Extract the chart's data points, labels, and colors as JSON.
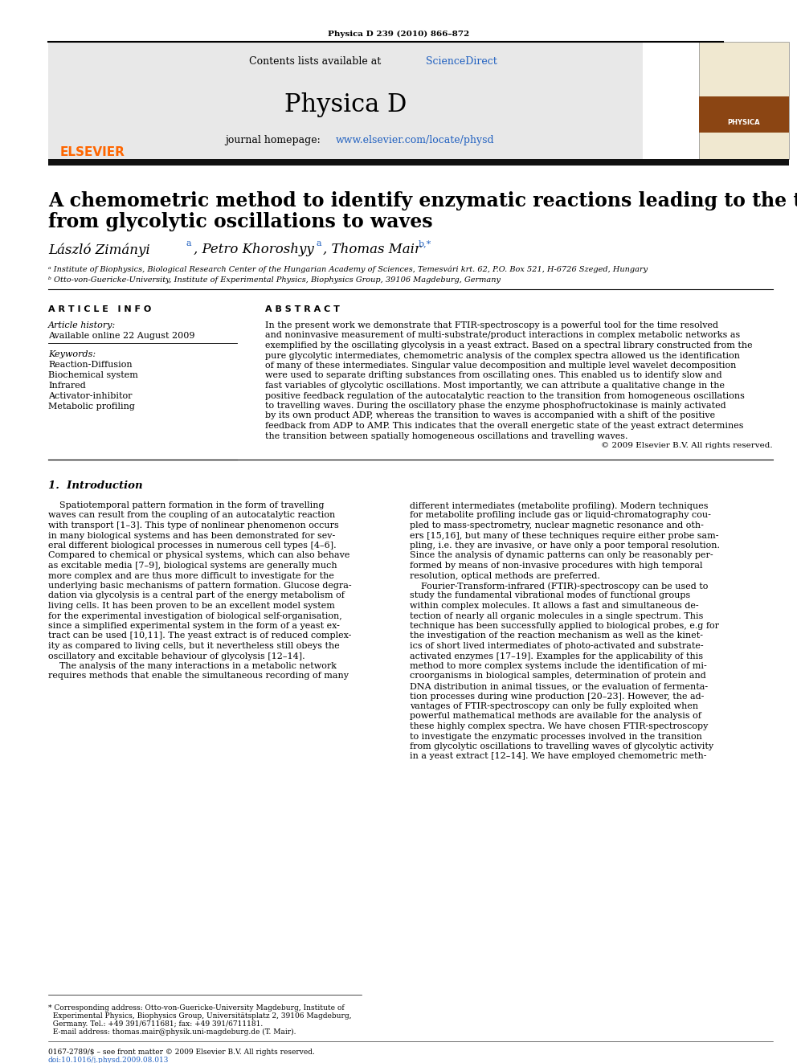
{
  "journal_info": "Physica D 239 (2010) 866–872",
  "header_text1": "Contents lists available at ScienceDirect",
  "header_journal": "Physica D",
  "header_url": "journal homepage: www.elsevier.com/locate/physd",
  "title_line1": "A chemometric method to identify enzymatic reactions leading to the transition",
  "title_line2": "from glycolytic oscillations to waves",
  "authors_part1": "László Zimányi",
  "authors_part2": ", Petro Khoroshyy",
  "authors_part3": ", Thomas Mair",
  "affil_a": "ᵃ Institute of Biophysics, Biological Research Center of the Hungarian Academy of Sciences, Temesvári krt. 62, P.O. Box 521, H-6726 Szeged, Hungary",
  "affil_b": "ᵇ Otto-von-Guericke-University, Institute of Experimental Physics, Biophysics Group, 39106 Magdeburg, Germany",
  "article_info_header": "A R T I C L E   I N F O",
  "abstract_header": "A B S T R A C T",
  "article_history_label": "Article history:",
  "article_history_value": "Available online 22 August 2009",
  "keywords_label": "Keywords:",
  "keywords": [
    "Reaction-Diffusion",
    "Biochemical system",
    "Infrared",
    "Activator-inhibitor",
    "Metabolic profiling"
  ],
  "abstract_lines": [
    "In the present work we demonstrate that FTIR-spectroscopy is a powerful tool for the time resolved",
    "and noninvasive measurement of multi-substrate/product interactions in complex metabolic networks as",
    "exemplified by the oscillating glycolysis in a yeast extract. Based on a spectral library constructed from the",
    "pure glycolytic intermediates, chemometric analysis of the complex spectra allowed us the identification",
    "of many of these intermediates. Singular value decomposition and multiple level wavelet decomposition",
    "were used to separate drifting substances from oscillating ones. This enabled us to identify slow and",
    "fast variables of glycolytic oscillations. Most importantly, we can attribute a qualitative change in the",
    "positive feedback regulation of the autocatalytic reaction to the transition from homogeneous oscillations",
    "to travelling waves. During the oscillatory phase the enzyme phosphofructokinase is mainly activated",
    "by its own product ADP, whereas the transition to waves is accompanied with a shift of the positive",
    "feedback from ADP to AMP. This indicates that the overall energetic state of the yeast extract determines",
    "the transition between spatially homogeneous oscillations and travelling waves."
  ],
  "copyright": "© 2009 Elsevier B.V. All rights reserved.",
  "section1_header": "1.  Introduction",
  "intro_col1_lines": [
    "    Spatiotemporal pattern formation in the form of travelling",
    "waves can result from the coupling of an autocatalytic reaction",
    "with transport [1–3]. This type of nonlinear phenomenon occurs",
    "in many biological systems and has been demonstrated for sev-",
    "eral different biological processes in numerous cell types [4–6].",
    "Compared to chemical or physical systems, which can also behave",
    "as excitable media [7–9], biological systems are generally much",
    "more complex and are thus more difficult to investigate for the",
    "underlying basic mechanisms of pattern formation. Glucose degra-",
    "dation via glycolysis is a central part of the energy metabolism of",
    "living cells. It has been proven to be an excellent model system",
    "for the experimental investigation of biological self-organisation,",
    "since a simplified experimental system in the form of a yeast ex-",
    "tract can be used [10,11]. The yeast extract is of reduced complex-",
    "ity as compared to living cells, but it nevertheless still obeys the",
    "oscillatory and excitable behaviour of glycolysis [12–14].",
    "    The analysis of the many interactions in a metabolic network",
    "requires methods that enable the simultaneous recording of many"
  ],
  "intro_col2_lines": [
    "different intermediates (metabolite profiling). Modern techniques",
    "for metabolite profiling include gas or liquid-chromatography cou-",
    "pled to mass-spectrometry, nuclear magnetic resonance and oth-",
    "ers [15,16], but many of these techniques require either probe sam-",
    "pling, i.e. they are invasive, or have only a poor temporal resolution.",
    "Since the analysis of dynamic patterns can only be reasonably per-",
    "formed by means of non-invasive procedures with high temporal",
    "resolution, optical methods are preferred.",
    "    Fourier-Transform-infrared (FTIR)-spectroscopy can be used to",
    "study the fundamental vibrational modes of functional groups",
    "within complex molecules. It allows a fast and simultaneous de-",
    "tection of nearly all organic molecules in a single spectrum. This",
    "technique has been successfully applied to biological probes, e.g for",
    "the investigation of the reaction mechanism as well as the kinet-",
    "ics of short lived intermediates of photo-activated and substrate-",
    "activated enzymes [17–19]. Examples for the applicability of this",
    "method to more complex systems include the identification of mi-",
    "croorganisms in biological samples, determination of protein and",
    "DNA distribution in animal tissues, or the evaluation of fermenta-",
    "tion processes during wine production [20–23]. However, the ad-",
    "vantages of FTIR-spectroscopy can only be fully exploited when",
    "powerful mathematical methods are available for the analysis of",
    "these highly complex spectra. We have chosen FTIR-spectroscopy",
    "to investigate the enzymatic processes involved in the transition",
    "from glycolytic oscillations to travelling waves of glycolytic activity",
    "in a yeast extract [12–14]. We have employed chemometric meth-"
  ],
  "footer_lines": [
    "* Corresponding address: Otto-von-Guericke-University Magdeburg, Institute of",
    "  Experimental Physics, Biophysics Group, Universitätsplatz 2, 39106 Magdeburg,",
    "  Germany. Tel.: +49 391/6711681; fax: +49 391/6711181.",
    "  E-mail address: thomas.mair@physik.uni-magdeburg.de (T. Mair)."
  ],
  "footer_issn": "0167-2789/$ – see front matter © 2009 Elsevier B.V. All rights reserved.",
  "footer_doi": "doi:10.1016/j.physd.2009.08.013",
  "elsevier_color": "#FF6600",
  "link_color": "#2060C0",
  "header_bg": "#E8E8E8",
  "dark_bar_color": "#111111",
  "text_color": "#000000"
}
